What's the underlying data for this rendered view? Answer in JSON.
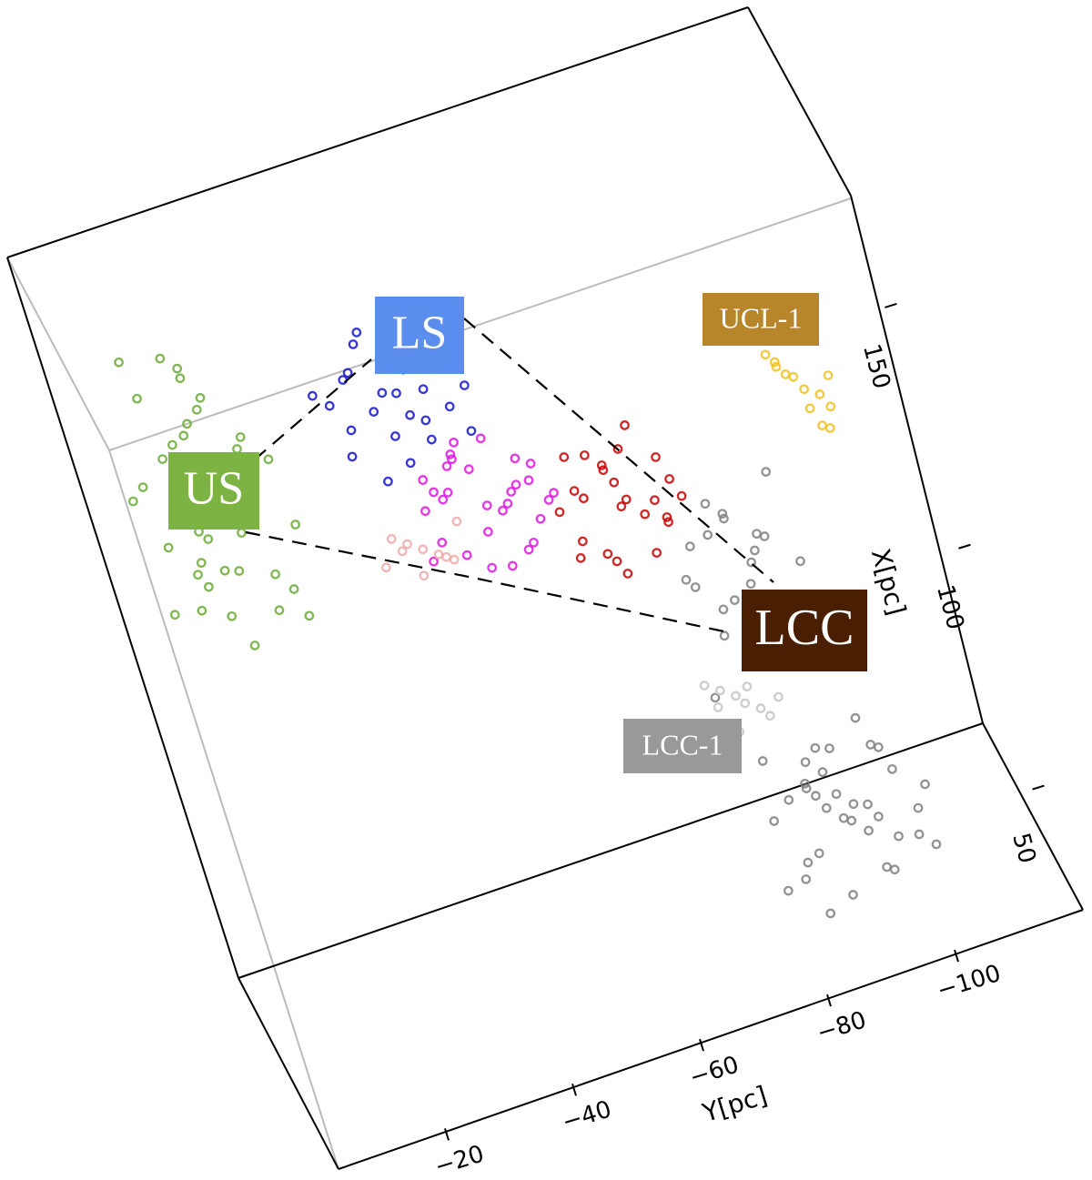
{
  "chart_data": {
    "type": "scatter",
    "xlabel": "Y[pc]",
    "ylabel": "X[pc]",
    "xlim": [
      -3,
      -118
    ],
    "ylim": [
      25,
      170
    ],
    "xticks": [
      {
        "value": -20,
        "label": "−20"
      },
      {
        "value": -40,
        "label": "−40"
      },
      {
        "value": -60,
        "label": "−60"
      },
      {
        "value": -80,
        "label": "−80"
      },
      {
        "value": -100,
        "label": "−100"
      }
    ],
    "yticks": [
      50,
      100,
      150
    ],
    "series": [
      {
        "name": "US",
        "color": "#6aaa34",
        "label_color": "#7cb342",
        "x": [
          -14,
          -8,
          -20,
          -11,
          -17,
          -5,
          -23,
          -13,
          -9,
          -16,
          -19,
          -12,
          -6,
          -21,
          -15,
          -10,
          -18,
          -14,
          -3,
          -25,
          -13,
          -8,
          -17,
          -11,
          -20,
          -15,
          -7,
          -12,
          -22,
          -16,
          -10,
          -14,
          -19,
          -9,
          -13,
          -18,
          -4,
          -15,
          -11,
          -24
        ],
        "y": [
          159,
          182,
          140,
          171,
          150,
          165,
          130,
          188,
          145,
          176,
          160,
          135,
          152,
          168,
          185,
          142,
          155,
          128,
          163,
          148,
          172,
          138,
          178,
          157,
          166,
          143,
          190,
          151,
          136,
          161,
          147,
          174,
          133,
          169,
          144,
          156,
          139,
          183,
          153,
          162
        ]
      },
      {
        "name": "LS",
        "color": "#1414d2",
        "label_color": "#5b8def",
        "x": [
          -45,
          -38,
          -52,
          -41,
          -48,
          -35,
          -55,
          -43,
          -50,
          -40,
          -47,
          -37,
          -53,
          -44,
          -49,
          -42,
          -36,
          -51,
          -46,
          -39,
          -54,
          -43,
          -48,
          -41,
          -33
        ],
        "y": [
          166,
          172,
          160,
          178,
          155,
          168,
          163,
          158,
          174,
          150,
          170,
          162,
          176,
          152,
          165,
          180,
          157,
          169,
          161,
          173,
          154,
          167,
          159,
          164,
          171
        ]
      },
      {
        "color": "#e014e0",
        "x": [
          -53,
          -46,
          -60,
          -50,
          -57,
          -44,
          -63,
          -52,
          -48,
          -58,
          -55,
          -45,
          -61,
          -51,
          -49,
          -56,
          -43,
          -59,
          -54,
          -47,
          -62,
          -50,
          -57,
          -52,
          -45,
          -58,
          -48,
          -55,
          -51,
          -60
        ],
        "y": [
          139,
          145,
          133,
          150,
          128,
          142,
          137,
          147,
          131,
          141,
          152,
          135,
          144,
          127,
          149,
          138,
          132,
          146,
          126,
          143,
          136,
          151,
          140,
          134,
          148,
          129,
          144,
          137,
          153,
          141
        ]
      },
      {
        "color": "#c80000",
        "x": [
          -72,
          -66,
          -78,
          -69,
          -75,
          -63,
          -81,
          -71,
          -68,
          -76,
          -73,
          -65,
          -79,
          -70,
          -67,
          -77,
          -74,
          -64,
          -80,
          -71,
          -69,
          -75,
          -72,
          -66,
          -78
        ],
        "y": [
          130,
          136,
          124,
          142,
          119,
          133,
          128,
          139,
          122,
          145,
          131,
          126,
          137,
          117,
          134,
          129,
          141,
          123,
          132,
          138,
          120,
          127,
          135,
          143,
          125
        ]
      },
      {
        "name": "UCL-1",
        "color": "#f0c020",
        "label_color": "#b8862a",
        "x": [
          -103,
          -100,
          -106,
          -102,
          -105,
          -99,
          -104,
          -101,
          -107,
          -103,
          -100,
          -105
        ],
        "y": [
          140,
          146,
          135,
          143,
          138,
          149,
          132,
          144,
          141,
          136,
          147,
          131
        ]
      },
      {
        "name": "LCC",
        "color": "#808080",
        "label_color": "#4a1e00",
        "x": [
          -87,
          -80,
          -93,
          -84,
          -90,
          -78,
          -96,
          -86,
          -82,
          -91,
          -88,
          -79,
          -94,
          -85,
          -83,
          -92,
          -89,
          -77,
          -95,
          -86,
          -81,
          -90,
          -84,
          -97,
          -88,
          -90,
          -83,
          -97,
          -87,
          -94,
          -80,
          -101,
          -89,
          -85,
          -96,
          -92,
          -82,
          -99,
          -88,
          -86,
          -95,
          -91,
          -79,
          -103,
          -90,
          -84,
          -98,
          -93,
          -81,
          -100,
          -88,
          -95,
          -86,
          -91,
          -97,
          -83,
          -102,
          -89,
          -94,
          -87
        ],
        "y": [
          107,
          118,
          96,
          125,
          101,
          112,
          90,
          121,
          104,
          115,
          98,
          110,
          127,
          93,
          119,
          102,
          113,
          88,
          108,
          122,
          99,
          116,
          105,
          94,
          111,
          57,
          64,
          50,
          70,
          45,
          61,
          54,
          67,
          52,
          75,
          59,
          48,
          63,
          42,
          66,
          55,
          71,
          47,
          58,
          62,
          40,
          68,
          53,
          73,
          49,
          60,
          44,
          65,
          56,
          69,
          51,
          46,
          72,
          58,
          63
        ]
      },
      {
        "color": "#f0a8a8",
        "x": [
          -42,
          -38,
          -46,
          -40,
          -44,
          -36,
          -48,
          -41,
          -39,
          -45
        ],
        "y": [
          135,
          139,
          131,
          137,
          133,
          134,
          138,
          130,
          136,
          132
        ]
      },
      {
        "name": "LCC-1",
        "color": "#c4c4c4",
        "label_color": "#999999",
        "x": [
          -81,
          -78,
          -84,
          -80,
          -83,
          -76,
          -86,
          -79,
          -82,
          -77
        ],
        "y": [
          85,
          89,
          81,
          87,
          83,
          91,
          84,
          80,
          88,
          86
        ]
      }
    ]
  }
}
